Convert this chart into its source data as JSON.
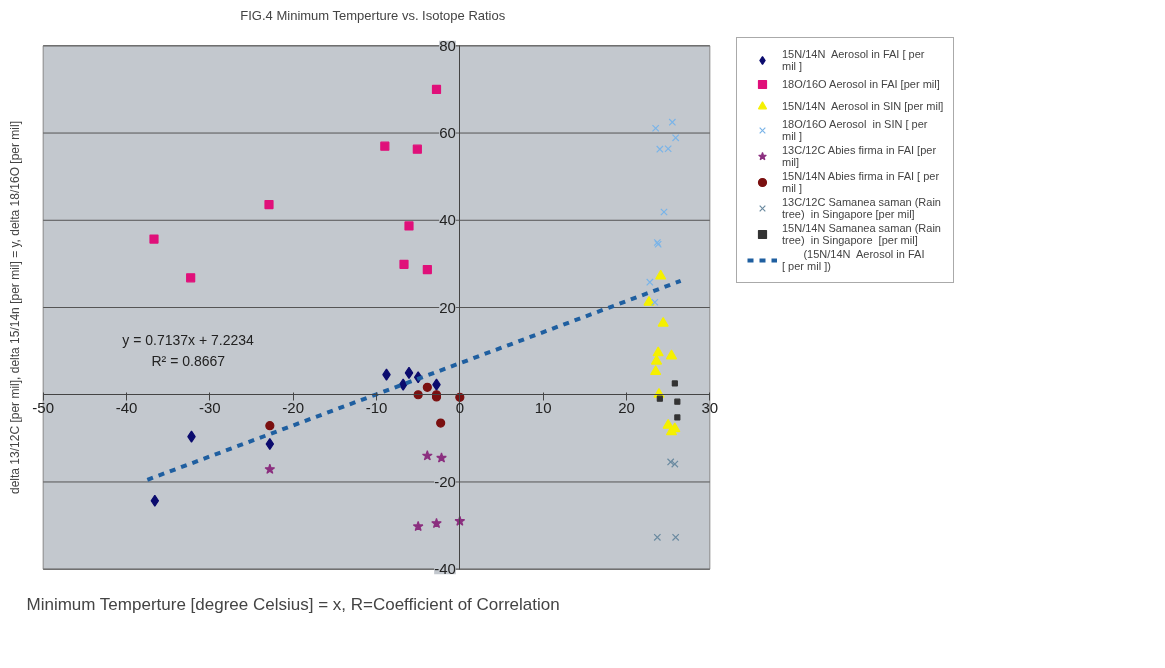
{
  "chart_data": {
    "type": "scatter",
    "title": "FIG.4   Minimum Temperture vs. Isotope Ratios",
    "xlabel": "Minimum Temperture [degree Celsius] = x, R=Coefficient of Correlation",
    "ylabel": "delta 13/12C [per mil], delta 15/14n [per mil] = y, delta 18/16O [per mil]",
    "xlim": [
      -50,
      30
    ],
    "xticks": [
      -50,
      -40,
      -30,
      -20,
      -10,
      0,
      10,
      20,
      30
    ],
    "ylim": [
      -40,
      80
    ],
    "yticks": [
      -40,
      -20,
      20,
      40,
      60,
      80
    ],
    "grid": "y",
    "legend": "top right",
    "annotations": [
      "y = 0.7137x + 7.2234",
      "R² = 0.8667"
    ],
    "series": [
      {
        "name": "15N/14N  Aerosol in FAI [ per mil ]",
        "color": "#0b0b6e",
        "marker": "diamond",
        "x": [
          -8.8,
          -6.1,
          -5.0,
          -2.8,
          -6.8,
          -32.2,
          -22.8,
          -36.6
        ],
        "values": [
          4.6,
          5.0,
          4.0,
          2.3,
          2.3,
          -9.6,
          -11.3,
          -24.3
        ]
      },
      {
        "name": "18O/16O Aerosol in FAI [per mil]",
        "color": "#e0107a",
        "marker": "square",
        "x": [
          -2.8,
          -9.0,
          -5.1,
          -22.9,
          -36.7,
          -6.1,
          -32.3,
          -6.7,
          -3.9
        ],
        "values": [
          70.0,
          57.0,
          56.3,
          43.6,
          35.7,
          38.7,
          26.8,
          29.9,
          28.7
        ]
      },
      {
        "name": "15N/14N  Aerosol in SIN [per mil]",
        "color": "#f5f000",
        "marker": "triangle",
        "x": [
          24.1,
          22.7,
          24.4,
          23.8,
          25.4,
          23.6,
          23.5,
          23.9,
          25.0,
          25.8,
          25.4
        ],
        "values": [
          27.2,
          21.2,
          16.4,
          9.6,
          8.9,
          7.7,
          5.3,
          0.1,
          -7.0,
          -7.8,
          -8.5
        ]
      },
      {
        "name": "18O/16O Aerosol  in SIN [ per mil ]",
        "color": "#7ab4e8",
        "marker": "cross",
        "x": [
          23.5,
          25.5,
          25.9,
          24.0,
          25.0,
          24.5,
          23.7,
          23.8,
          22.8,
          23.4
        ],
        "values": [
          61.1,
          62.5,
          58.9,
          56.3,
          56.4,
          41.9,
          34.9,
          34.5,
          25.8,
          21.2
        ]
      },
      {
        "name": "13C/12C Abies firma in FAI [per mil]",
        "color": "#8b2f7f",
        "marker": "star",
        "x": [
          -22.8,
          -3.9,
          -2.2,
          -5.0,
          -2.8,
          0.0
        ],
        "values": [
          -17.1,
          -14.0,
          -14.5,
          -30.2,
          -29.5,
          -29.0
        ]
      },
      {
        "name": "15N/14N Abies firma in FAI [ per mil ]",
        "color": "#7b1010",
        "marker": "circle",
        "x": [
          -5.0,
          -3.9,
          -2.8,
          -2.8,
          0.0,
          -2.3,
          -22.8
        ],
        "values": [
          0.0,
          1.7,
          0.0,
          -0.5,
          -0.6,
          -6.5,
          -7.1
        ]
      },
      {
        "name": "13C/12C Samanea saman (Rain tree)  in Singapore [per mil]",
        "color": "#6a8aa0",
        "marker": "cross",
        "x": [
          25.3,
          25.8,
          23.7,
          25.9
        ],
        "values": [
          -15.4,
          -15.9,
          -32.7,
          -32.7
        ]
      },
      {
        "name": "15N/14N Samanea saman (Rain tree)  in Singapore  [per mil]",
        "color": "#333333",
        "marker": "square",
        "x": [
          25.8,
          24.0,
          26.1,
          26.1
        ],
        "values": [
          2.6,
          -0.9,
          -1.6,
          -5.2
        ]
      },
      {
        "name": "       (15N/14N  Aerosol in FAI [ per mil ])",
        "type": "line",
        "line_style": "dashed",
        "color": "#1f5fa0",
        "x": [
          -37.5,
          26.5
        ],
        "values": [
          -19.5,
          26.1
        ]
      }
    ]
  }
}
